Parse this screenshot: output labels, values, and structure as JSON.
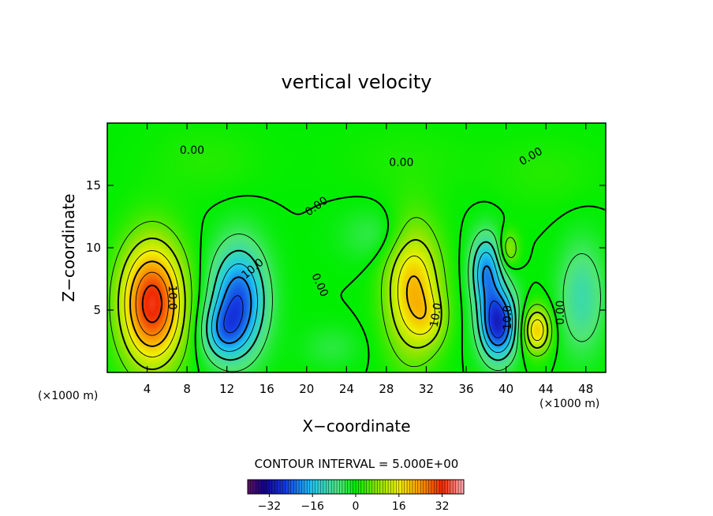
{
  "chart_data": {
    "type": "heatmap",
    "title": "vertical velocity",
    "xlabel": "X−coordinate",
    "ylabel": "Z−coordinate",
    "x_unit_left": "(×1000 m)",
    "x_unit_right": "(×1000 m)",
    "xlim": [
      0,
      50
    ],
    "ylim": [
      0,
      20
    ],
    "x_ticks": [
      4,
      8,
      12,
      16,
      20,
      24,
      28,
      32,
      36,
      40,
      44,
      48
    ],
    "y_ticks": [
      5,
      10,
      15
    ],
    "contour_interval_text": "CONTOUR INTERVAL = 5.000E+00",
    "colorbar": {
      "range": [
        -40,
        40
      ],
      "ticks": [
        -32,
        -16,
        0,
        16,
        32
      ],
      "tick_labels": [
        "−32",
        "−16",
        "0",
        "16",
        "32"
      ]
    },
    "contour_labels": [
      {
        "text": "0.00",
        "x": 8.5,
        "y": 17.8,
        "rotate": 0
      },
      {
        "text": "0.00",
        "x": 21,
        "y": 13.3,
        "rotate": -35
      },
      {
        "text": "0.00",
        "x": 29.5,
        "y": 16.8,
        "rotate": 0
      },
      {
        "text": "0.00",
        "x": 42.5,
        "y": 17.3,
        "rotate": -30
      },
      {
        "text": "0.00",
        "x": 21.3,
        "y": 7,
        "rotate": 65
      },
      {
        "text": "0.00",
        "x": 45.5,
        "y": 4.8,
        "rotate": -90
      },
      {
        "text": "10.0",
        "x": 6.5,
        "y": 6,
        "rotate": 90
      },
      {
        "text": "10.0",
        "x": 14.6,
        "y": 8.3,
        "rotate": -40
      },
      {
        "text": "10.0",
        "x": 33,
        "y": 4.6,
        "rotate": -80
      },
      {
        "text": "10.0",
        "x": 40.2,
        "y": 4.4,
        "rotate": -90
      }
    ],
    "features": [
      {
        "x": 4.5,
        "z": 5.5,
        "value": 33,
        "sx": 2.2,
        "sz": 3.4
      },
      {
        "x": 13.2,
        "z": 5.8,
        "value": -24,
        "sx": 1.9,
        "sz": 3.0
      },
      {
        "x": 11.5,
        "z": 3.2,
        "value": -12,
        "sx": 1.5,
        "sz": 1.6
      },
      {
        "x": 30.7,
        "z": 6.6,
        "value": 21,
        "sx": 1.9,
        "sz": 3.6
      },
      {
        "x": 32.5,
        "z": 4.2,
        "value": 6,
        "sx": 1.2,
        "sz": 1.5
      },
      {
        "x": 38.0,
        "z": 8.2,
        "value": -19,
        "sx": 1.1,
        "sz": 2.0
      },
      {
        "x": 39.2,
        "z": 3.9,
        "value": -29,
        "sx": 1.3,
        "sz": 2.0
      },
      {
        "x": 40.3,
        "z": 9.9,
        "value": 9,
        "sx": 0.7,
        "sz": 1.0
      },
      {
        "x": 43.1,
        "z": 3.4,
        "value": 19,
        "sx": 1.0,
        "sz": 1.3
      },
      {
        "x": 47.6,
        "z": 6.0,
        "value": -10,
        "sx": 1.6,
        "sz": 3.0
      },
      {
        "x": 22.5,
        "z": 2.0,
        "value": -3,
        "sx": 2.0,
        "sz": 1.2
      },
      {
        "x": 44.0,
        "z": 16.0,
        "value": 2,
        "sx": 4.0,
        "sz": 2.0
      },
      {
        "x": 10.0,
        "z": 17.0,
        "value": 2,
        "sx": 4.0,
        "sz": 2.0
      },
      {
        "x": 30.0,
        "z": 17.0,
        "value": 1.5,
        "sx": 5.0,
        "sz": 2.0
      },
      {
        "x": 27.0,
        "z": 11.0,
        "value": -4,
        "sx": 2.5,
        "sz": 1.5
      }
    ]
  }
}
